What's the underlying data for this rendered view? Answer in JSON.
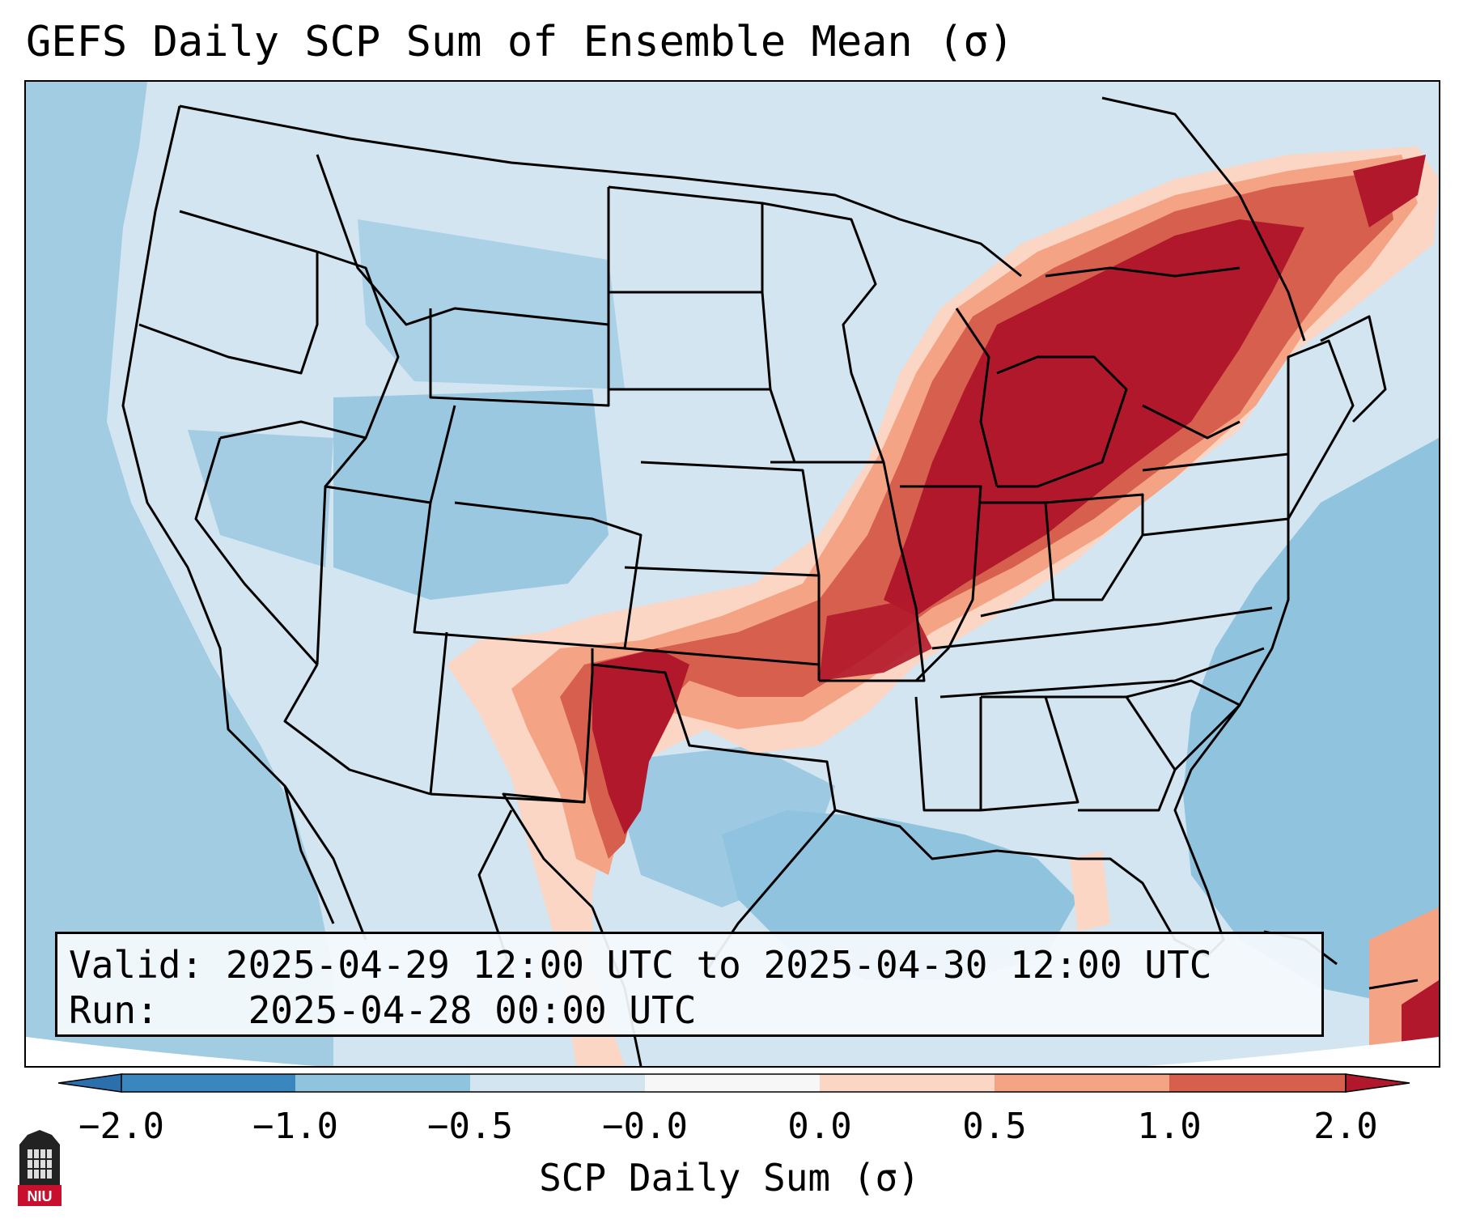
{
  "title": "GEFS Daily SCP Sum of Ensemble Mean (σ)",
  "info": {
    "valid_label": "Valid:",
    "valid_value": "2025-04-29 12:00 UTC to 2025-04-30 12:00 UTC",
    "run_label": "Run:",
    "run_value": "2025-04-28 00:00 UTC"
  },
  "colorbar": {
    "label": "SCP Daily Sum (σ)",
    "ticks": [
      "−2.0",
      "−1.0",
      "−0.5",
      "−0.0",
      "0.0",
      "0.5",
      "1.0",
      "2.0"
    ],
    "colors": [
      "#3a87c0",
      "#90c3de",
      "#d2e5f0",
      "#f7f7f7",
      "#fbd6c4",
      "#f4a384",
      "#d6604d",
      "#b2182b"
    ]
  },
  "map": {
    "ocean_color": "#90c3de",
    "land_base_color": "#d2e5f0",
    "border_color": "#000000",
    "outside_color": "#ffffff"
  },
  "logo": {
    "text": "NIU"
  }
}
